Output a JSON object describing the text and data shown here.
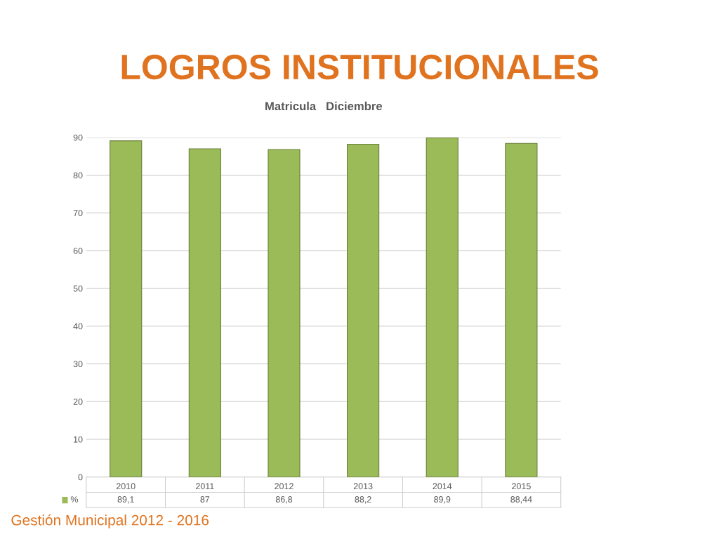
{
  "chart_data": {
    "type": "bar",
    "title": "LOGROS INSTITUCIONALES",
    "subtitle": "Matricula   Diciembre",
    "categories": [
      "2010",
      "2011",
      "2012",
      "2013",
      "2014",
      "2015"
    ],
    "series": [
      {
        "name": "%",
        "color": "#9bbb59",
        "values": [
          89.1,
          87,
          86.8,
          88.2,
          89.9,
          88.44
        ],
        "value_labels": [
          "89,1",
          "87",
          "86,8",
          "88,2",
          "89,9",
          "88,44"
        ]
      }
    ],
    "ylim": [
      0,
      90
    ],
    "yticks": [
      0,
      10,
      20,
      30,
      40,
      50,
      60,
      70,
      80,
      90
    ],
    "grid": "y",
    "legend": "bottom",
    "annotations": [
      "Gestión Municipal 2012 - 2016"
    ]
  }
}
